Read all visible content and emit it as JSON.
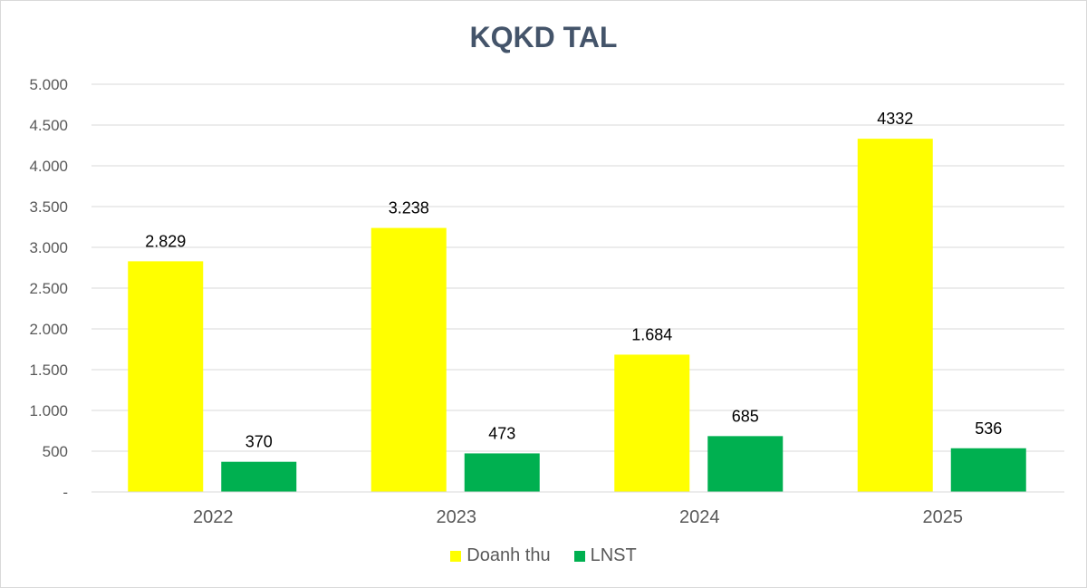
{
  "chart_data": {
    "type": "bar",
    "title": "KQKD TAL",
    "categories": [
      "2022",
      "2023",
      "2024",
      "2025"
    ],
    "series": [
      {
        "name": "Doanh thu",
        "color": "#ffff00",
        "values": [
          2829,
          3238,
          1684,
          4332
        ],
        "labels": [
          "2.829",
          "3.238",
          "1.684",
          "4332"
        ]
      },
      {
        "name": "LNST",
        "color": "#00b050",
        "values": [
          370,
          473,
          685,
          536
        ],
        "labels": [
          "370",
          "473",
          "685",
          "536"
        ]
      }
    ],
    "ylim": [
      0,
      5000
    ],
    "yticks": [
      0,
      500,
      1000,
      1500,
      2000,
      2500,
      3000,
      3500,
      4000,
      4500,
      5000
    ],
    "ytick_labels": [
      "-",
      "500",
      "1.000",
      "1.500",
      "2.000",
      "2.500",
      "3.000",
      "3.500",
      "4.000",
      "4.500",
      "5.000"
    ],
    "grid": true,
    "legend_position": "bottom",
    "xlabel": "",
    "ylabel": ""
  }
}
